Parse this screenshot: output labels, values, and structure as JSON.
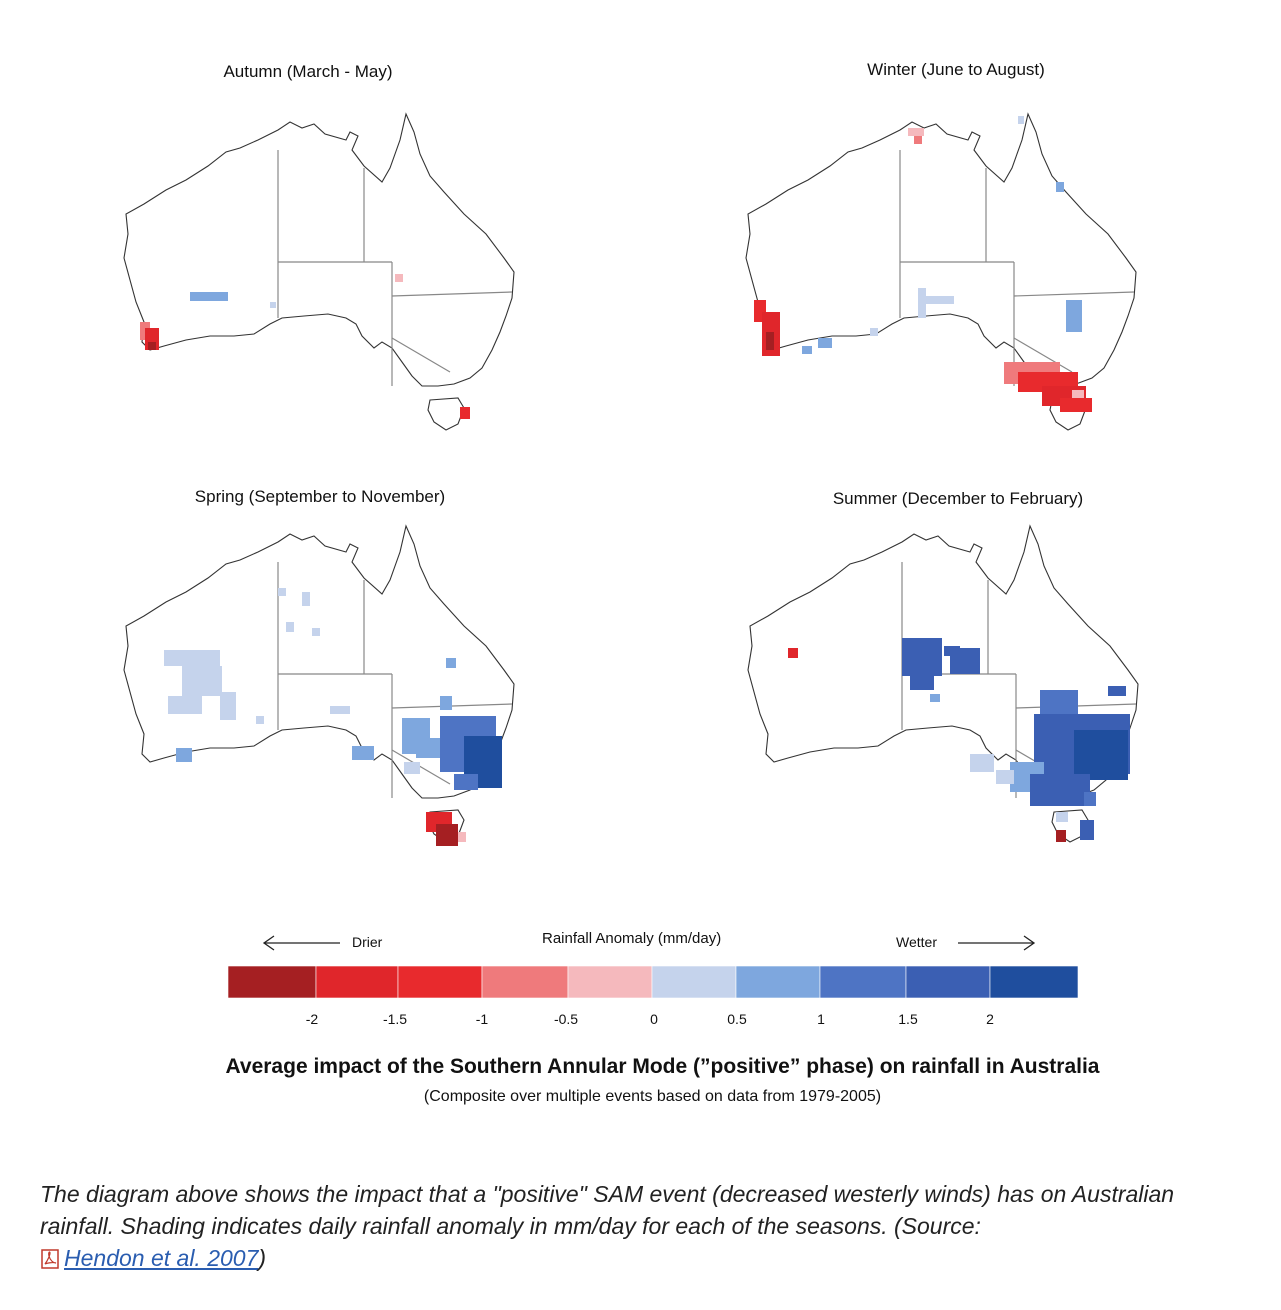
{
  "figure": {
    "panels": [
      {
        "key": "autumn",
        "title": "Autumn (March - May)"
      },
      {
        "key": "winter",
        "title": "Winter (June to August)"
      },
      {
        "key": "spring",
        "title": "Spring (September to November)"
      },
      {
        "key": "summer",
        "title": "Summer (December to February)"
      }
    ],
    "legend": {
      "title": "Rainfall Anomaly (mm/day)",
      "drier": "Drier",
      "wetter": "Wetter",
      "ticks": [
        "-2",
        "-1.5",
        "-1",
        "-0.5",
        "0",
        "0.5",
        "1",
        "1.5",
        "2"
      ],
      "colors": [
        "#a51f22",
        "#e0262b",
        "#e82a2d",
        "#ef7a7c",
        "#f5b9bd",
        "#c5d3ec",
        "#7ea7de",
        "#4e74c4",
        "#3b5fb3",
        "#1f4e9e"
      ]
    },
    "main_title": "Average impact of the Southern Annular Mode (”positive” phase) on rainfall in Australia",
    "subtitle": "(Composite over multiple events based on data from 1979-2005)"
  },
  "caption": {
    "text": "The diagram above shows the impact that a \"positive\" SAM event (decreased westerly winds) has on Australian rainfall. Shading indicates daily rainfall anomaly in mm/day for each of the seasons. (Source: ",
    "link_text": "Hendon et al. 2007",
    "close": ")"
  }
}
